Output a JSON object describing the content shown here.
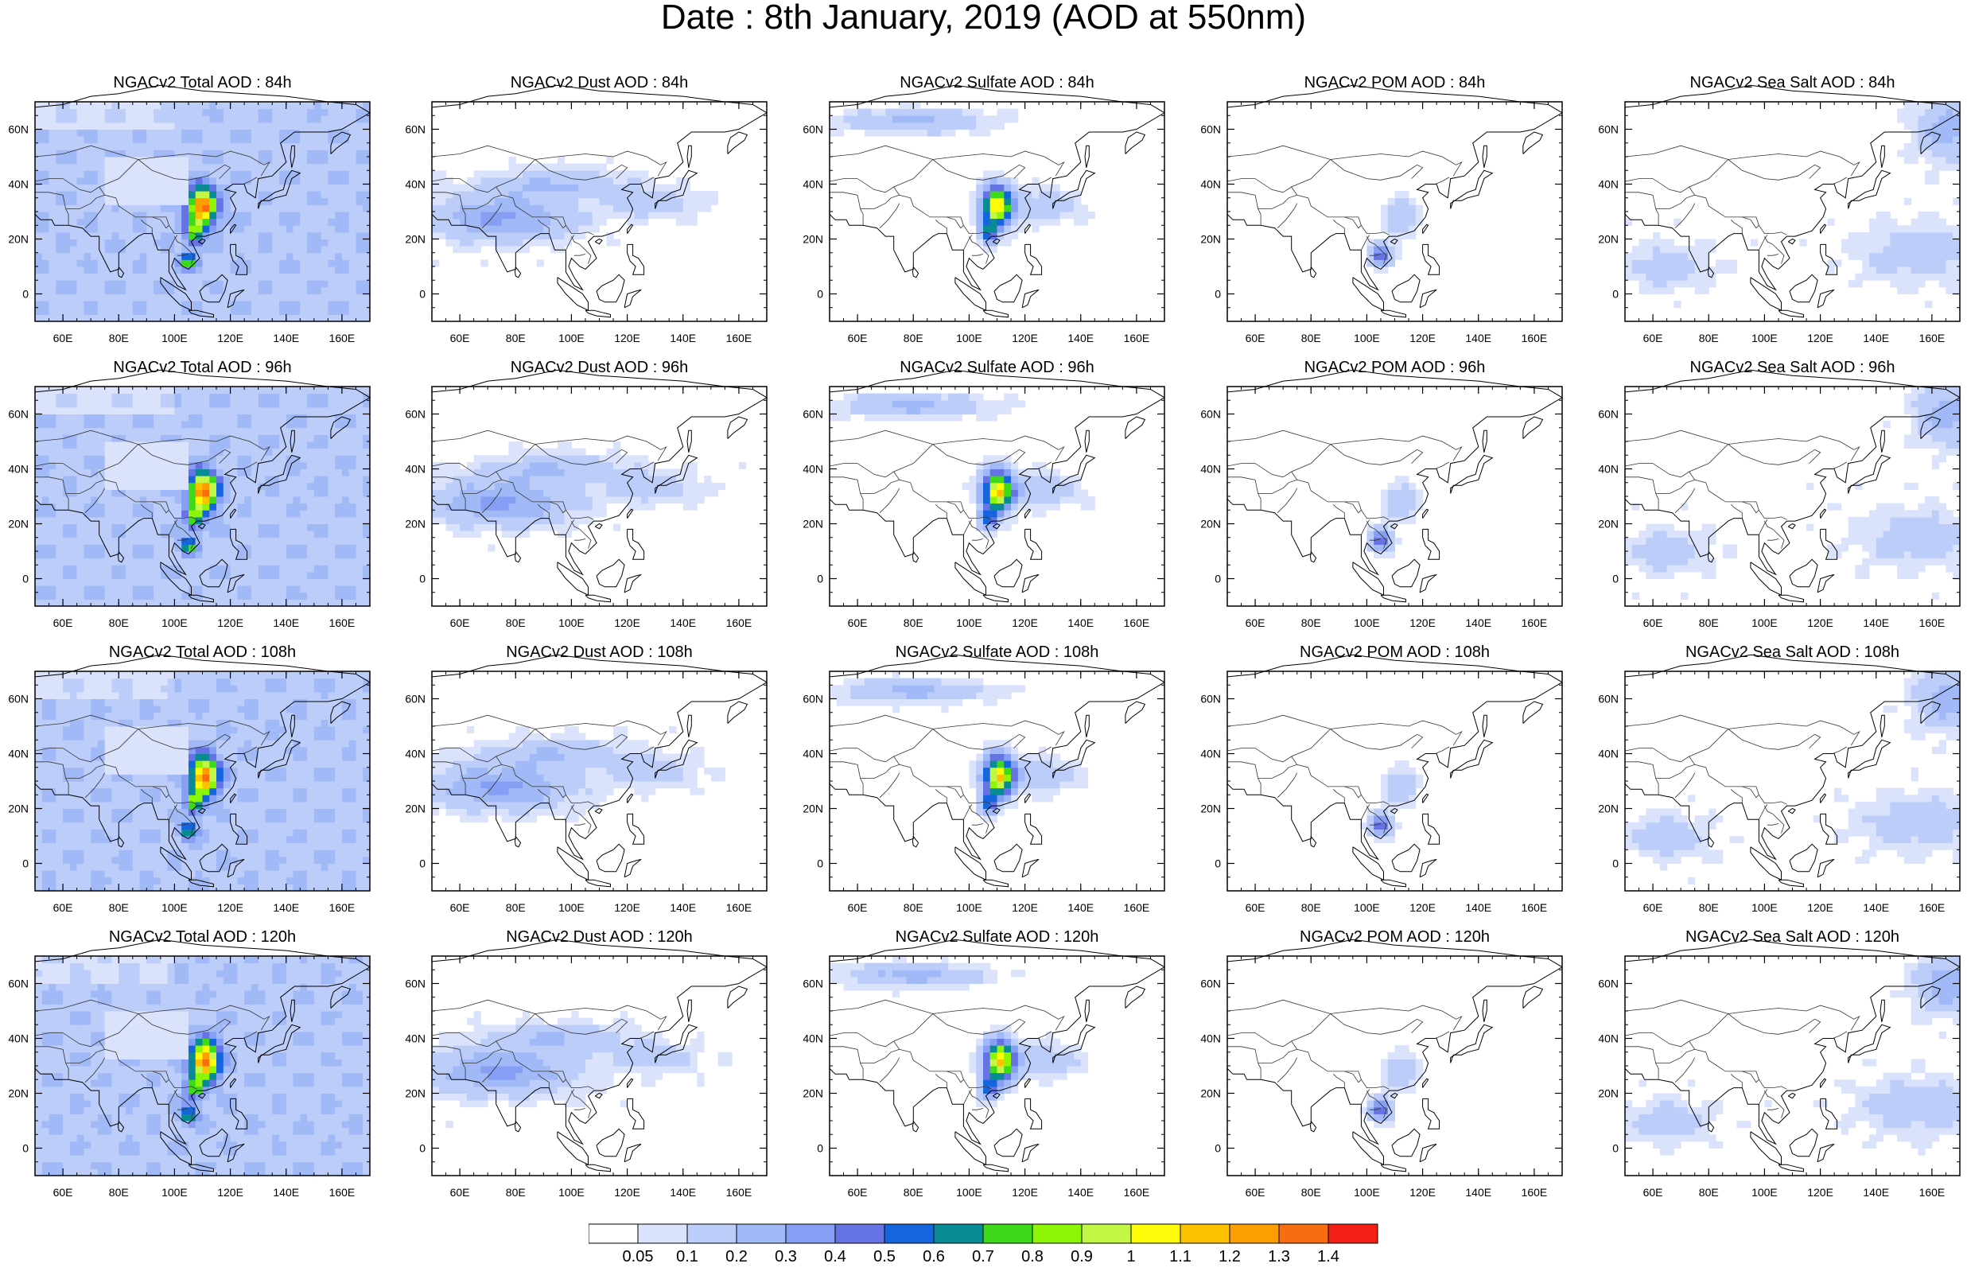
{
  "title": "Date : 8th January, 2019 (AOD at 550nm)",
  "chart_data": {
    "type": "heatmap",
    "map_region": "Asia",
    "x_axis": {
      "range": [
        50,
        170
      ],
      "ticks": [
        "60E",
        "80E",
        "100E",
        "120E",
        "140E",
        "160E"
      ],
      "tick_values": [
        60,
        80,
        100,
        120,
        140,
        160
      ]
    },
    "y_axis": {
      "range": [
        -10,
        70
      ],
      "ticks": [
        "0",
        "20N",
        "40N",
        "60N"
      ],
      "tick_values": [
        0,
        20,
        40,
        60
      ]
    },
    "colorbar": {
      "labels": [
        "0.05",
        "0.1",
        "0.2",
        "0.3",
        "0.4",
        "0.5",
        "0.6",
        "0.7",
        "0.8",
        "0.9",
        "1",
        "1.1",
        "1.2",
        "1.3",
        "1.4"
      ],
      "colors": [
        "#ffffff",
        "#dae3fb",
        "#bccdfa",
        "#a2b9f8",
        "#869ef3",
        "#6673e5",
        "#1565dc",
        "#088b94",
        "#3ed91a",
        "#8cf508",
        "#c3f746",
        "#fdfb07",
        "#fdc100",
        "#fd9e00",
        "#f96d12",
        "#f41f15"
      ]
    },
    "panels": [
      {
        "title": "NGACv2 Total AOD : 84h",
        "field": "Total AOD",
        "hour": 84
      },
      {
        "title": "NGACv2 Dust AOD : 84h",
        "field": "Dust AOD",
        "hour": 84
      },
      {
        "title": "NGACv2 Sulfate AOD : 84h",
        "field": "Sulfate AOD",
        "hour": 84
      },
      {
        "title": "NGACv2 POM AOD : 84h",
        "field": "POM AOD",
        "hour": 84
      },
      {
        "title": "NGACv2 Sea Salt AOD : 84h",
        "field": "Sea Salt AOD",
        "hour": 84
      },
      {
        "title": "NGACv2 Total AOD : 96h",
        "field": "Total AOD",
        "hour": 96
      },
      {
        "title": "NGACv2 Dust AOD : 96h",
        "field": "Dust AOD",
        "hour": 96
      },
      {
        "title": "NGACv2 Sulfate AOD : 96h",
        "field": "Sulfate AOD",
        "hour": 96
      },
      {
        "title": "NGACv2 POM AOD : 96h",
        "field": "POM AOD",
        "hour": 96
      },
      {
        "title": "NGACv2 Sea Salt AOD : 96h",
        "field": "Sea Salt AOD",
        "hour": 96
      },
      {
        "title": "NGACv2 Total AOD : 108h",
        "field": "Total AOD",
        "hour": 108
      },
      {
        "title": "NGACv2 Dust AOD : 108h",
        "field": "Dust AOD",
        "hour": 108
      },
      {
        "title": "NGACv2 Sulfate AOD : 108h",
        "field": "Sulfate AOD",
        "hour": 108
      },
      {
        "title": "NGACv2 POM AOD : 108h",
        "field": "POM AOD",
        "hour": 108
      },
      {
        "title": "NGACv2 Sea Salt AOD : 108h",
        "field": "Sea Salt AOD",
        "hour": 108
      },
      {
        "title": "NGACv2 Total AOD : 120h",
        "field": "Total AOD",
        "hour": 120
      },
      {
        "title": "NGACv2 Dust AOD : 120h",
        "field": "Dust AOD",
        "hour": 120
      },
      {
        "title": "NGACv2 Sulfate AOD : 120h",
        "field": "Sulfate AOD",
        "hour": 120
      },
      {
        "title": "NGACv2 POM AOD : 120h",
        "field": "POM AOD",
        "hour": 120
      },
      {
        "title": "NGACv2 Sea Salt  AOD : 120h",
        "field": "Sea Salt AOD",
        "hour": 120
      }
    ]
  }
}
